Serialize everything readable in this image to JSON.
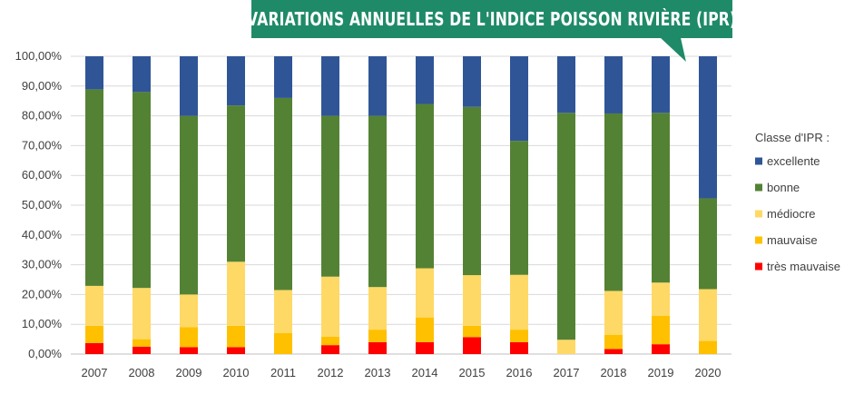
{
  "chart_data": {
    "type": "bar",
    "stacked": "100%",
    "title": "VARIATIONS ANNUELLES DE L'INDICE POISSON RIVIÈRE (IPR)",
    "categories": [
      "2007",
      "2008",
      "2009",
      "2010",
      "2011",
      "2012",
      "2013",
      "2014",
      "2015",
      "2016",
      "2017",
      "2018",
      "2019",
      "2020"
    ],
    "y_ticks": [
      "0,00%",
      "10,00%",
      "20,00%",
      "30,00%",
      "40,00%",
      "50,00%",
      "60,00%",
      "70,00%",
      "80,00%",
      "90,00%",
      "100,00%"
    ],
    "ylim": [
      0,
      100
    ],
    "grid": true,
    "legend": {
      "title": "Classe d'IPR :",
      "position": "right"
    },
    "series": [
      {
        "name": "très mauvaise",
        "color": "#ff0000",
        "values": [
          3.7,
          2.5,
          2.3,
          2.3,
          0,
          3.0,
          4.0,
          4.0,
          5.7,
          4.0,
          0,
          1.7,
          3.3,
          0
        ]
      },
      {
        "name": "mauvaise",
        "color": "#ffc000",
        "values": [
          5.8,
          2.5,
          6.7,
          7.2,
          7.1,
          2.8,
          4.2,
          8.3,
          3.8,
          4.2,
          0,
          4.8,
          9.5,
          4.4
        ]
      },
      {
        "name": "médiocre",
        "color": "#ffd966",
        "values": [
          13.4,
          17.2,
          11.0,
          21.5,
          14.4,
          20.2,
          14.3,
          16.5,
          17.0,
          18.4,
          4.8,
          14.7,
          11.2,
          17.4
        ]
      },
      {
        "name": "bonne",
        "color": "#548235",
        "values": [
          66.0,
          65.8,
          60.0,
          52.5,
          64.5,
          54.0,
          57.5,
          55.2,
          56.5,
          45.0,
          76.2,
          59.6,
          57.0,
          30.5
        ]
      },
      {
        "name": "excellente",
        "color": "#2f5597",
        "values": [
          11.1,
          12.0,
          20.0,
          16.5,
          14.0,
          20.0,
          20.0,
          16.0,
          17.0,
          28.4,
          19.0,
          19.2,
          19.0,
          47.7
        ]
      }
    ]
  }
}
